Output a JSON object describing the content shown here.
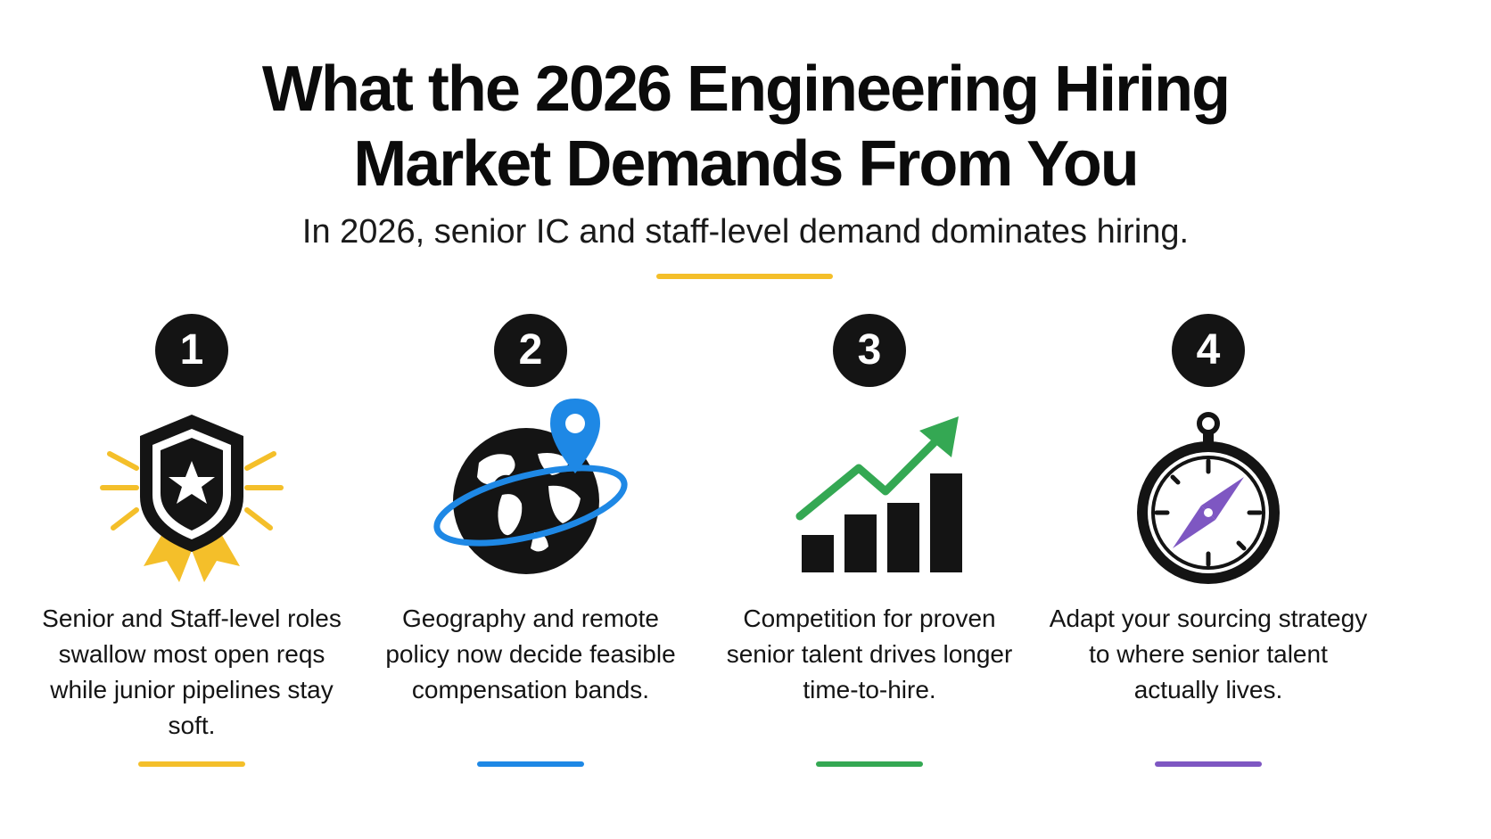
{
  "header": {
    "title_line1": "What the 2026 Engineering Hiring",
    "title_line2": "Market Demands From You",
    "subtitle": "In 2026, senior IC and staff-level demand dominates hiring.",
    "rule_color": "#F4BF2A"
  },
  "cards": [
    {
      "number": "1",
      "icon": "award-shield-star-icon",
      "text": "Senior and Staff-level roles swallow most open reqs while junior pipelines stay soft.",
      "accent": "#F4BF2A"
    },
    {
      "number": "2",
      "icon": "globe-location-pin-icon",
      "text": "Geography and remote policy now decide feasible compensation bands.",
      "accent": "#1E88E5"
    },
    {
      "number": "3",
      "icon": "rising-bar-chart-arrow-icon",
      "text": "Competition for proven senior talent drives longer time-to-hire.",
      "accent": "#34A853"
    },
    {
      "number": "4",
      "icon": "compass-icon",
      "text": "Adapt your sourcing strategy to where senior talent actually lives.",
      "accent": "#7E57C2"
    }
  ]
}
